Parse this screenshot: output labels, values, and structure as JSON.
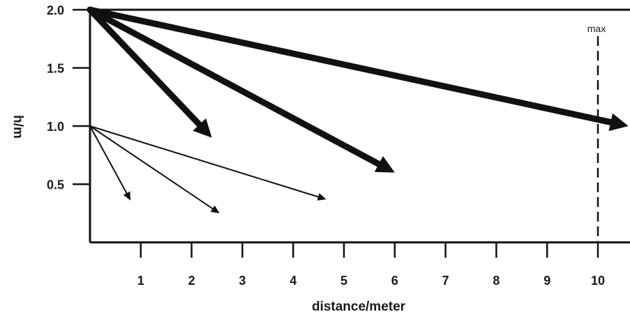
{
  "chart_data": {
    "type": "line",
    "xlabel": "distance/meter",
    "ylabel": "h/m",
    "xlim": [
      0,
      10.6
    ],
    "ylim": [
      0,
      2.0
    ],
    "x_ticks": [
      1,
      2,
      3,
      4,
      5,
      6,
      7,
      8,
      9,
      10
    ],
    "x_tick_labels": [
      "1",
      "2",
      "3",
      "4",
      "5",
      "6",
      "7",
      "8",
      "9",
      "10"
    ],
    "y_ticks": [
      0.5,
      1.0,
      1.5,
      2.0
    ],
    "y_tick_labels": [
      "0.5",
      "1.0",
      "1.5",
      "2.0"
    ],
    "grid": false,
    "series": [
      {
        "start": [
          0,
          2.0
        ],
        "end": [
          2.4,
          0.9
        ],
        "weight": "heavy"
      },
      {
        "start": [
          0,
          2.0
        ],
        "end": [
          6.0,
          0.6
        ],
        "weight": "heavy"
      },
      {
        "start": [
          0,
          2.0
        ],
        "end": [
          10.6,
          1.0
        ],
        "weight": "heavy"
      },
      {
        "start": [
          0,
          1.0
        ],
        "end": [
          0.8,
          0.36
        ],
        "weight": "light"
      },
      {
        "start": [
          0,
          1.0
        ],
        "end": [
          2.55,
          0.25
        ],
        "weight": "light"
      },
      {
        "start": [
          0,
          1.0
        ],
        "end": [
          4.65,
          0.37
        ],
        "weight": "light"
      }
    ],
    "reference_lines": [
      {
        "x": 10,
        "style": "dashed",
        "label": "max"
      }
    ]
  }
}
